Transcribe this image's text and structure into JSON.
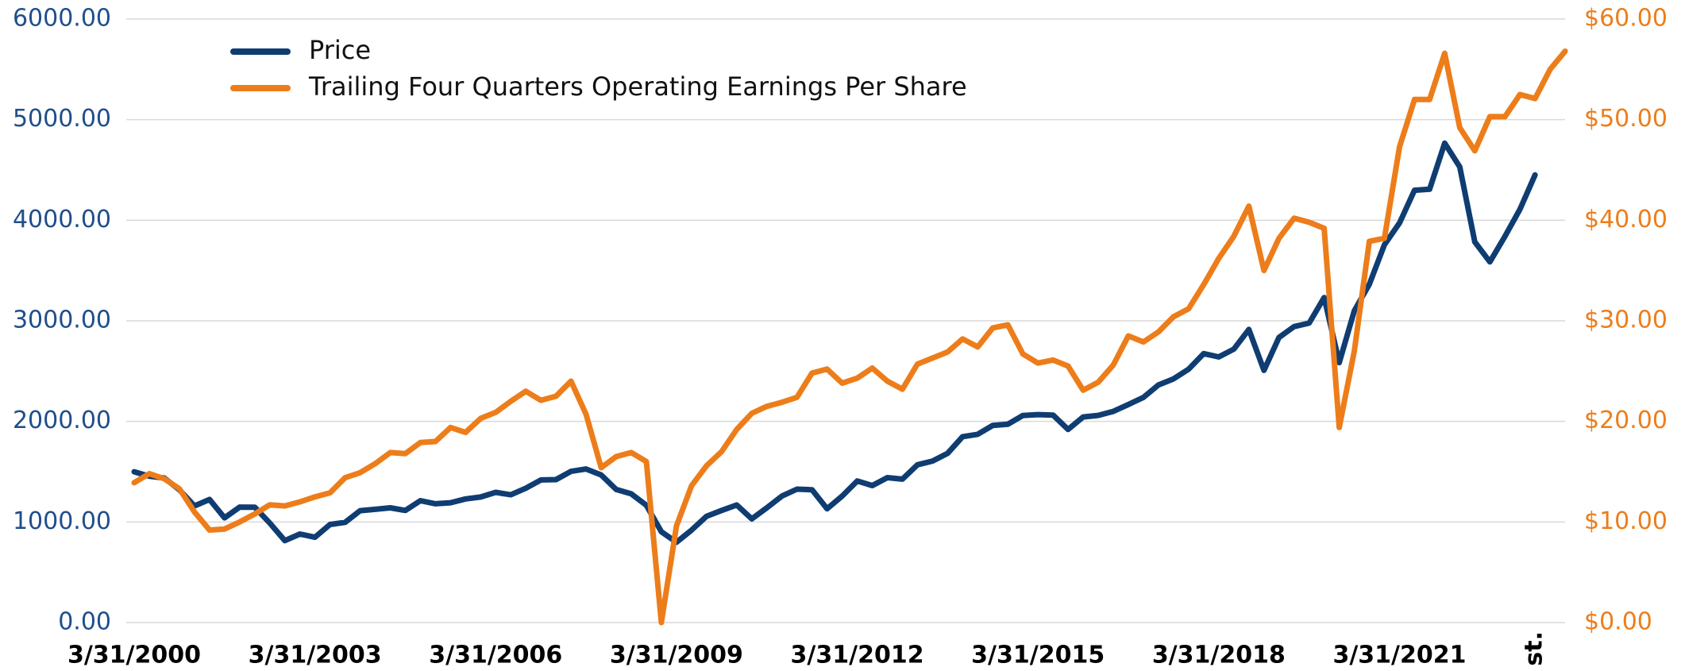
{
  "chart_data": {
    "type": "line",
    "categories": [
      "3/31/2000",
      null,
      null,
      null,
      null,
      null,
      null,
      null,
      null,
      null,
      null,
      null,
      "3/31/2003",
      null,
      null,
      null,
      null,
      null,
      null,
      null,
      null,
      null,
      null,
      null,
      "3/31/2006",
      null,
      null,
      null,
      null,
      null,
      null,
      null,
      null,
      null,
      null,
      null,
      "3/31/2009",
      null,
      null,
      null,
      null,
      null,
      null,
      null,
      null,
      null,
      null,
      null,
      "3/31/2012",
      null,
      null,
      null,
      null,
      null,
      null,
      null,
      null,
      null,
      null,
      null,
      "3/31/2015",
      null,
      null,
      null,
      null,
      null,
      null,
      null,
      null,
      null,
      null,
      null,
      "3/31/2018",
      null,
      null,
      null,
      null,
      null,
      null,
      null,
      null,
      null,
      null,
      null,
      "3/31/2021",
      null,
      null,
      null,
      null,
      null,
      null,
      null,
      null,
      "st.",
      null,
      null
    ],
    "series": [
      {
        "name": "Price",
        "color": "#0f3d72",
        "values": [
          1499,
          1455,
          1437,
          1320,
          1160,
          1224,
          1041,
          1148,
          1147,
          990,
          815,
          880,
          848,
          975,
          996,
          1112,
          1126,
          1141,
          1115,
          1212,
          1181,
          1191,
          1229,
          1248,
          1295,
          1270,
          1336,
          1418,
          1421,
          1503,
          1527,
          1468,
          1323,
          1280,
          1166,
          903,
          798,
          919,
          1057,
          1115,
          1169,
          1031,
          1141,
          1258,
          1326,
          1321,
          1131,
          1258,
          1408,
          1362,
          1441,
          1426,
          1569,
          1606,
          1682,
          1848,
          1872,
          1960,
          1972,
          2059,
          2068,
          2063,
          1920,
          2044,
          2060,
          2099,
          2168,
          2239,
          2363,
          2423,
          2519,
          2674,
          2641,
          2718,
          2914,
          2507,
          2834,
          2942,
          2977,
          3231,
          2585,
          3100,
          3363,
          3756,
          3973,
          4298,
          4308,
          4766,
          4530,
          3785,
          3586,
          3840,
          4109,
          4450,
          null,
          null
        ]
      },
      {
        "name": "Trailing Four Quarters Operating Earnings Per Share",
        "color": "#ed7d1a",
        "axis": "y2",
        "values": [
          13.9,
          14.8,
          14.3,
          13.3,
          11.0,
          9.2,
          9.3,
          10.0,
          10.8,
          11.7,
          11.6,
          12.0,
          12.5,
          12.9,
          14.4,
          14.9,
          15.8,
          16.9,
          16.8,
          17.9,
          18.0,
          19.4,
          18.9,
          20.3,
          20.9,
          22.0,
          23.0,
          22.1,
          22.5,
          24.0,
          20.7,
          15.4,
          16.5,
          16.9,
          16.0,
          0,
          9.6,
          13.6,
          15.6,
          17.0,
          19.2,
          20.8,
          21.5,
          21.9,
          22.4,
          24.8,
          25.2,
          23.8,
          24.3,
          25.3,
          24.0,
          23.2,
          25.7,
          26.3,
          26.9,
          28.2,
          27.4,
          29.3,
          29.6,
          26.7,
          25.8,
          26.1,
          25.5,
          23.1,
          23.9,
          25.6,
          28.5,
          27.9,
          28.9,
          30.4,
          31.2,
          33.6,
          36.2,
          38.4,
          41.4,
          35.0,
          38.2,
          40.2,
          39.8,
          39.2,
          19.4,
          27.0,
          37.9,
          38.2,
          47.3,
          52.0,
          52.0,
          56.6,
          49.2,
          46.9,
          50.3,
          50.3,
          52.5,
          52.1,
          55.0,
          56.8
        ]
      }
    ],
    "ylim": [
      0,
      6000
    ],
    "yticks": [
      {
        "value": 0,
        "label": "0.00"
      },
      {
        "value": 1000,
        "label": "1000.00"
      },
      {
        "value": 2000,
        "label": "2000.00"
      },
      {
        "value": 3000,
        "label": "3000.00"
      },
      {
        "value": 4000,
        "label": "4000.00"
      },
      {
        "value": 5000,
        "label": "5000.00"
      },
      {
        "value": 6000,
        "label": "6000.00"
      }
    ],
    "y2lim": [
      0,
      60
    ],
    "y2ticks": [
      {
        "value": 0,
        "label": "$0.00"
      },
      {
        "value": 10,
        "label": "$10.00"
      },
      {
        "value": 20,
        "label": "$20.00"
      },
      {
        "value": 30,
        "label": "$30.00"
      },
      {
        "value": 40,
        "label": "$40.00"
      },
      {
        "value": 50,
        "label": "$50.00"
      },
      {
        "value": 60,
        "label": "$60.00"
      }
    ],
    "grid": true,
    "legend": "top-left",
    "ytick_color": "#1f4e8c",
    "y2tick_color": "#ed7d1a"
  }
}
